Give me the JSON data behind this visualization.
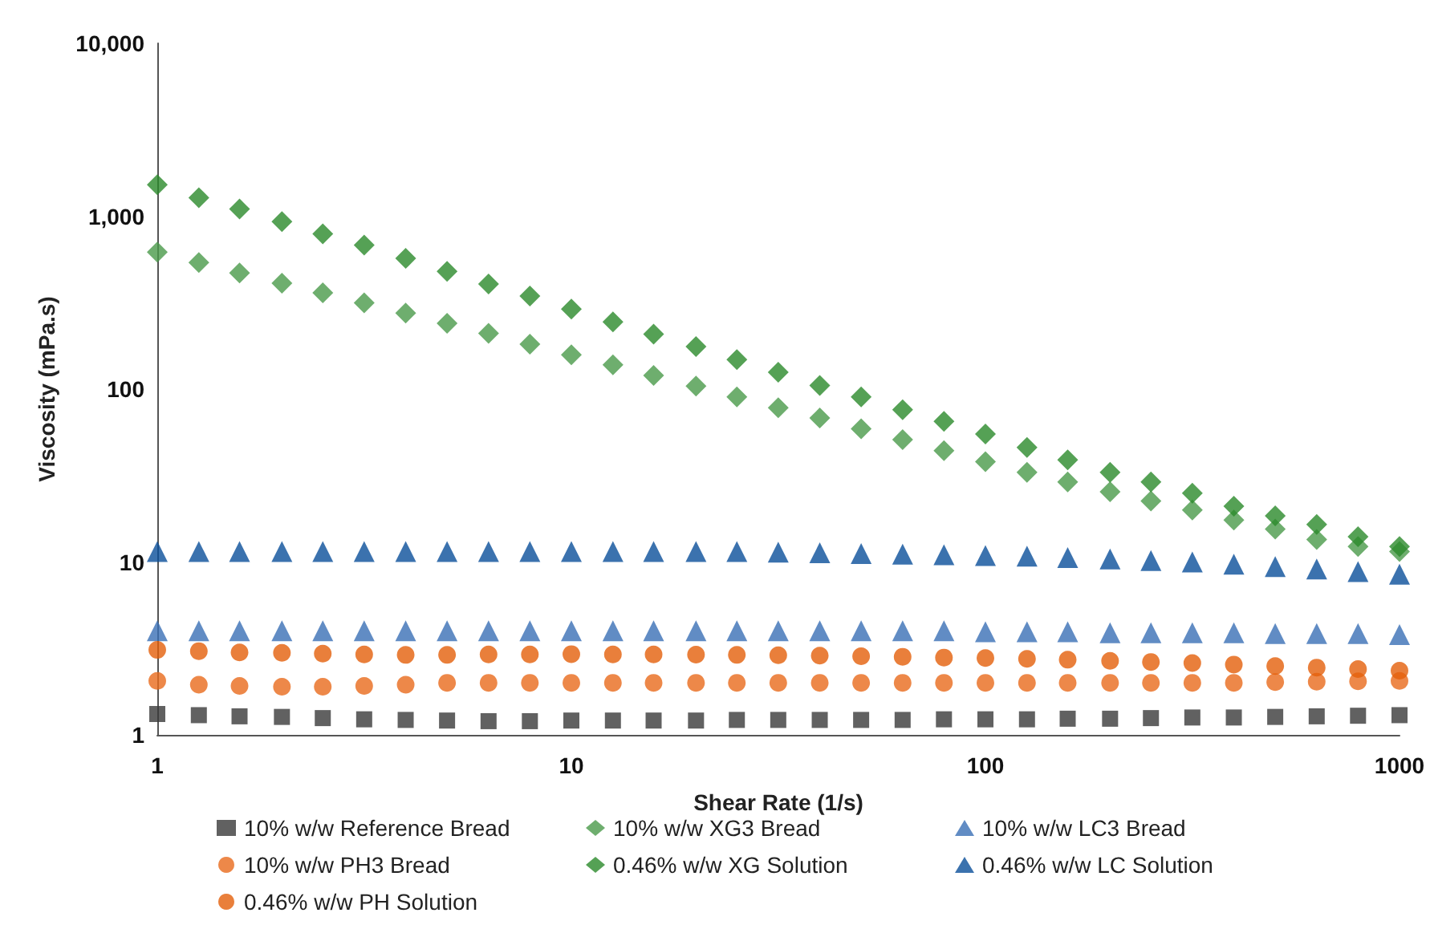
{
  "chart_data": {
    "type": "scatter",
    "xlabel": "Shear Rate (1/s)",
    "ylabel": "Viscosity (mPa.s)",
    "log": "xy",
    "grid": false,
    "legend": "bottom",
    "x": [
      1,
      1.26,
      1.58,
      2,
      2.51,
      3.16,
      3.98,
      5.01,
      6.31,
      7.94,
      10,
      12.6,
      15.8,
      20,
      25.1,
      31.6,
      39.8,
      50.1,
      63.1,
      79.4,
      100,
      126,
      158,
      200,
      251,
      316,
      398,
      501,
      631,
      794,
      1000
    ],
    "xlim": [
      1,
      1000
    ],
    "xticks": [
      1,
      10,
      100,
      1000
    ],
    "ylim": [
      1,
      10000
    ],
    "yticks": [
      1,
      10,
      100,
      {
        "value": 1000,
        "label": "1,000"
      },
      {
        "value": 10000,
        "label": "10,000"
      }
    ],
    "series": [
      {
        "name": "10% w/w Reference Bread",
        "color": "#3a3a3a",
        "marker": "square",
        "values": [
          1.32,
          1.3,
          1.28,
          1.27,
          1.25,
          1.23,
          1.22,
          1.21,
          1.2,
          1.2,
          1.21,
          1.21,
          1.21,
          1.21,
          1.22,
          1.22,
          1.22,
          1.22,
          1.22,
          1.23,
          1.23,
          1.23,
          1.24,
          1.24,
          1.25,
          1.26,
          1.26,
          1.27,
          1.28,
          1.29,
          1.3
        ]
      },
      {
        "name": "10% w/w XG3 Bread",
        "color": "#4a9a4a",
        "marker": "diamond",
        "values": [
          620,
          540,
          470,
          410,
          360,
          315,
          275,
          240,
          210,
          182,
          158,
          138,
          120,
          104,
          90,
          78,
          68,
          59,
          51,
          44,
          38,
          33,
          29,
          25.5,
          22.5,
          20,
          17.5,
          15.5,
          13.5,
          12.3,
          11.5
        ]
      },
      {
        "name": "10% w/w LC3 Bread",
        "color": "#3a6fb5",
        "marker": "triangle",
        "values": [
          4,
          4,
          4,
          4,
          4,
          4,
          4,
          4,
          4,
          4,
          4,
          4,
          4,
          4,
          4,
          4,
          4,
          4,
          4,
          4,
          3.95,
          3.95,
          3.95,
          3.9,
          3.9,
          3.9,
          3.9,
          3.85,
          3.85,
          3.85,
          3.8
        ]
      },
      {
        "name": "10% w/w PH3 Bread",
        "color": "#e86a1c",
        "marker": "circle",
        "values": [
          2.05,
          1.95,
          1.92,
          1.9,
          1.9,
          1.92,
          1.95,
          2,
          2,
          2,
          2,
          2,
          2,
          2,
          2,
          2,
          2,
          2,
          2,
          2,
          2,
          2,
          2,
          2,
          2,
          2,
          2,
          2.02,
          2.03,
          2.04,
          2.05
        ]
      },
      {
        "name": "0.46% w/w XG Solution",
        "color": "#2a8a2a",
        "marker": "diamond",
        "values": [
          1520,
          1280,
          1100,
          930,
          790,
          680,
          570,
          480,
          405,
          345,
          290,
          245,
          208,
          176,
          148,
          125,
          105,
          90,
          76,
          65,
          55,
          46,
          39,
          33,
          29,
          25,
          21,
          18.5,
          16.5,
          14,
          12.3
        ]
      },
      {
        "name": "0.46% w/w LC Solution",
        "color": "#0a4f9a",
        "marker": "triangle",
        "values": [
          11.5,
          11.5,
          11.5,
          11.5,
          11.5,
          11.5,
          11.5,
          11.5,
          11.5,
          11.5,
          11.5,
          11.5,
          11.5,
          11.5,
          11.5,
          11.4,
          11.3,
          11.2,
          11.1,
          11,
          10.9,
          10.8,
          10.6,
          10.4,
          10.2,
          10,
          9.7,
          9.4,
          9.1,
          8.8,
          8.5
        ]
      },
      {
        "name": "0.46% w/w PH Solution",
        "color": "#e35f0a",
        "marker": "circle",
        "values": [
          3.1,
          3.05,
          3,
          2.98,
          2.95,
          2.92,
          2.9,
          2.9,
          2.92,
          2.92,
          2.93,
          2.92,
          2.92,
          2.91,
          2.9,
          2.89,
          2.87,
          2.85,
          2.83,
          2.8,
          2.78,
          2.75,
          2.72,
          2.68,
          2.64,
          2.6,
          2.55,
          2.5,
          2.45,
          2.4,
          2.35
        ]
      }
    ]
  }
}
